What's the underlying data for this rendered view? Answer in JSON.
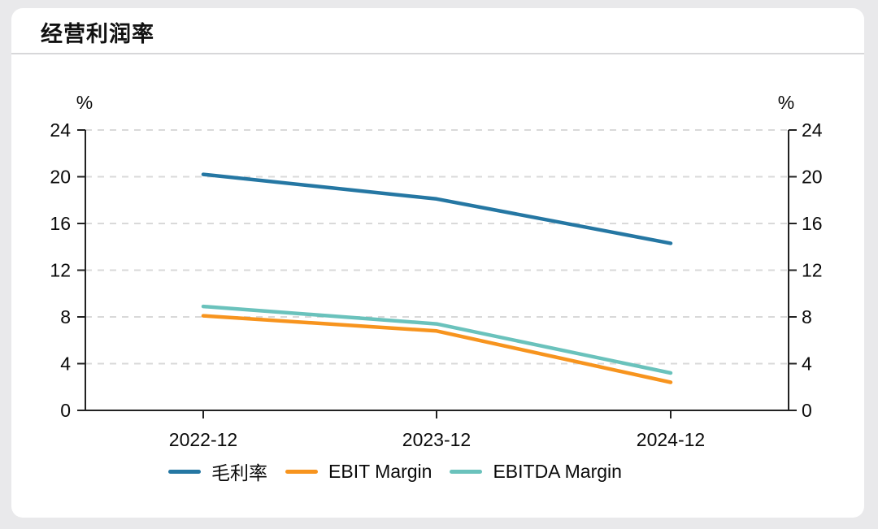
{
  "page": {
    "background_color": "#e9e9eb",
    "card_background_color": "#ffffff"
  },
  "header": {
    "title": "经营利润率"
  },
  "chart_data": {
    "type": "line",
    "title": "经营利润率",
    "unit": "%",
    "categories": [
      "2022-12",
      "2023-12",
      "2024-12"
    ],
    "series": [
      {
        "name": "毛利率",
        "color": "#2577a3",
        "values": [
          20.2,
          18.1,
          14.3
        ]
      },
      {
        "name": "EBIT Margin",
        "color": "#f7941e",
        "values": [
          8.1,
          6.8,
          2.4
        ]
      },
      {
        "name": "EBITDA Margin",
        "color": "#6ac2bc",
        "values": [
          8.9,
          7.4,
          3.2
        ]
      }
    ],
    "ylim": [
      0,
      24
    ],
    "yticks": [
      0,
      4,
      8,
      12,
      16,
      20,
      24
    ],
    "grid": "horizontal-dashed",
    "grid_color": "#d9d9d9",
    "axis_color": "#222222",
    "axes": {
      "left": true,
      "right": true,
      "mirrored": true
    },
    "legend_position": "bottom"
  }
}
